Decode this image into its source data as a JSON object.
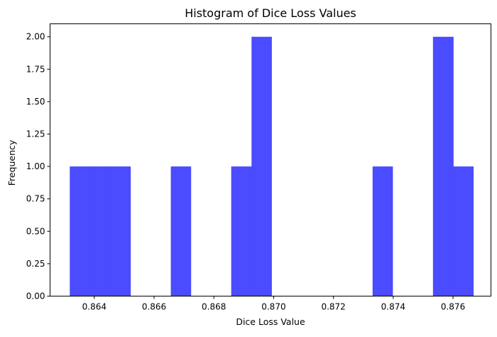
{
  "chart_data": {
    "type": "bar",
    "title": "Histogram of Dice Loss Values",
    "xlabel": "Dice Loss Value",
    "ylabel": "Frequency",
    "bar_color": "#4b4bff",
    "xlim": [
      0.86252,
      0.87727
    ],
    "ylim": [
      0,
      2.1
    ],
    "xticks": [
      0.864,
      0.866,
      0.868,
      0.87,
      0.872,
      0.874,
      0.876
    ],
    "xtick_labels": [
      "0.864",
      "0.866",
      "0.868",
      "0.870",
      "0.872",
      "0.874",
      "0.876"
    ],
    "yticks": [
      0,
      0.25,
      0.5,
      0.75,
      1.0,
      1.25,
      1.5,
      1.75,
      2.0
    ],
    "ytick_labels": [
      "0.00",
      "0.25",
      "0.50",
      "0.75",
      "1.00",
      "1.25",
      "1.50",
      "1.75",
      "2.00"
    ],
    "bins": [
      {
        "x0": 0.86318,
        "x1": 0.86386,
        "value": 1
      },
      {
        "x0": 0.86386,
        "x1": 0.86453,
        "value": 1
      },
      {
        "x0": 0.86453,
        "x1": 0.86521,
        "value": 1
      },
      {
        "x0": 0.86521,
        "x1": 0.86588,
        "value": 0
      },
      {
        "x0": 0.86588,
        "x1": 0.86656,
        "value": 0
      },
      {
        "x0": 0.86656,
        "x1": 0.86723,
        "value": 1
      },
      {
        "x0": 0.86723,
        "x1": 0.86791,
        "value": 0
      },
      {
        "x0": 0.86791,
        "x1": 0.86858,
        "value": 0
      },
      {
        "x0": 0.86858,
        "x1": 0.86926,
        "value": 1
      },
      {
        "x0": 0.86926,
        "x1": 0.86993,
        "value": 2
      },
      {
        "x0": 0.86993,
        "x1": 0.87061,
        "value": 0
      },
      {
        "x0": 0.87061,
        "x1": 0.87128,
        "value": 0
      },
      {
        "x0": 0.87128,
        "x1": 0.87196,
        "value": 0
      },
      {
        "x0": 0.87196,
        "x1": 0.87263,
        "value": 0
      },
      {
        "x0": 0.87263,
        "x1": 0.87331,
        "value": 0
      },
      {
        "x0": 0.87331,
        "x1": 0.87398,
        "value": 1
      },
      {
        "x0": 0.87398,
        "x1": 0.87466,
        "value": 0
      },
      {
        "x0": 0.87466,
        "x1": 0.87533,
        "value": 0
      },
      {
        "x0": 0.87533,
        "x1": 0.87601,
        "value": 2
      },
      {
        "x0": 0.87601,
        "x1": 0.87668,
        "value": 1
      }
    ]
  }
}
